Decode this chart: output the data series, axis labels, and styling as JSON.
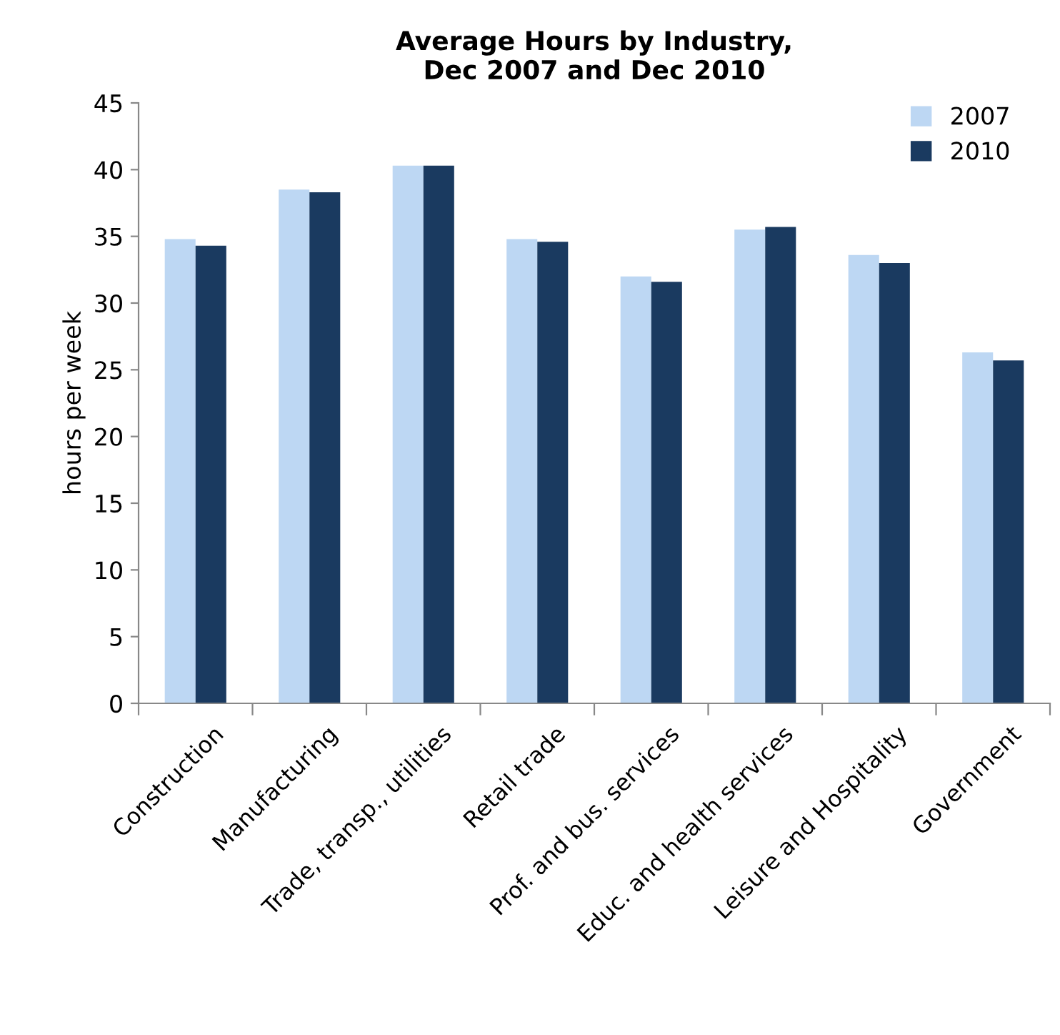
{
  "chart_data": {
    "type": "bar",
    "title": "Average Hours by Industry,\nDec 2007 and Dec 2010",
    "ylabel": "hours per week",
    "categories": [
      "Construction",
      "Manufacturing",
      "Trade, transp., utilities",
      "Retail trade",
      "Prof. and bus. services",
      "Educ. and health services",
      "Leisure and Hospitality",
      "Government"
    ],
    "series": [
      {
        "name": "2007",
        "color": "#bdd7f3",
        "values": [
          34.8,
          38.5,
          40.3,
          34.8,
          32.0,
          35.5,
          33.6,
          26.3
        ]
      },
      {
        "name": "2010",
        "color": "#1a3a60",
        "values": [
          34.3,
          38.3,
          40.3,
          34.6,
          31.6,
          35.7,
          33.0,
          25.7
        ]
      }
    ],
    "ylim": [
      0,
      45
    ],
    "yticks": [
      0,
      5,
      10,
      15,
      20,
      25,
      30,
      35,
      40,
      45
    ],
    "grid": false,
    "legend": "top right"
  }
}
